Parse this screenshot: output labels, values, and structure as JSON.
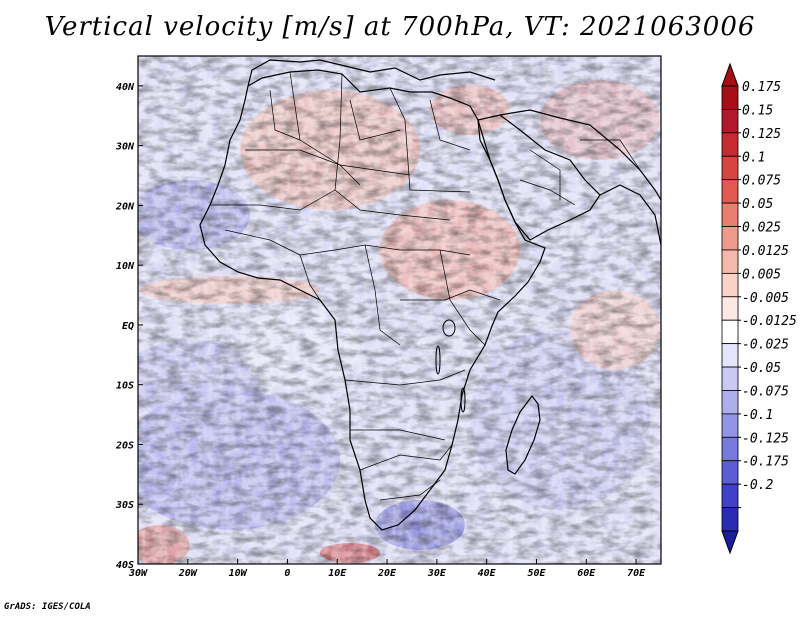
{
  "title": "Vertical velocity [m/s] at 700hPa, VT: 2021063006",
  "footer": "GrADS: IGES/COLA",
  "map": {
    "lon_range": [
      -30,
      75
    ],
    "lat_range": [
      -40,
      45
    ],
    "lon_ticks": [
      {
        "value": -30,
        "label": "30W"
      },
      {
        "value": -20,
        "label": "20W"
      },
      {
        "value": -10,
        "label": "10W"
      },
      {
        "value": 0,
        "label": "0"
      },
      {
        "value": 10,
        "label": "10E"
      },
      {
        "value": 20,
        "label": "20E"
      },
      {
        "value": 30,
        "label": "30E"
      },
      {
        "value": 40,
        "label": "40E"
      },
      {
        "value": 50,
        "label": "50E"
      },
      {
        "value": 60,
        "label": "60E"
      },
      {
        "value": 70,
        "label": "70E"
      }
    ],
    "lat_ticks": [
      {
        "value": 40,
        "label": "40N"
      },
      {
        "value": 30,
        "label": "30N"
      },
      {
        "value": 20,
        "label": "20N"
      },
      {
        "value": 10,
        "label": "10N"
      },
      {
        "value": 0,
        "label": "EQ"
      },
      {
        "value": -10,
        "label": "10S"
      },
      {
        "value": -20,
        "label": "20S"
      },
      {
        "value": -30,
        "label": "30S"
      },
      {
        "value": -40,
        "label": "40S"
      }
    ],
    "field": "Vertical velocity",
    "units": "m/s",
    "level": "700hPa"
  },
  "colorbar": {
    "levels": [
      {
        "label": "0.175",
        "color": "#b2182b"
      },
      {
        "label": "0.15",
        "color": "#c42c32"
      },
      {
        "label": "0.125",
        "color": "#d6453f"
      },
      {
        "label": "0.1",
        "color": "#e15a52"
      },
      {
        "label": "0.075",
        "color": "#ea7c70"
      },
      {
        "label": "0.05",
        "color": "#f09a8c"
      },
      {
        "label": "0.025",
        "color": "#f5b8aa"
      },
      {
        "label": "0.0125",
        "color": "#f9d2c8"
      },
      {
        "label": "0.005",
        "color": "#fce9e3"
      },
      {
        "label": "-0.005",
        "color": "#ffffff"
      },
      {
        "label": "-0.0125",
        "color": "#e4e4fa"
      },
      {
        "label": "-0.025",
        "color": "#c9c9f3"
      },
      {
        "label": "-0.05",
        "color": "#aeaeee"
      },
      {
        "label": "-0.075",
        "color": "#9393e8"
      },
      {
        "label": "-0.1",
        "color": "#7878e1"
      },
      {
        "label": "-0.125",
        "color": "#5c5cd8"
      },
      {
        "label": "-0.175",
        "color": "#4040c8"
      },
      {
        "label": "-0.2",
        "color": "#2a2ab2"
      }
    ],
    "top_color": "#a50f15",
    "bottom_color": "#1c1ca0"
  }
}
